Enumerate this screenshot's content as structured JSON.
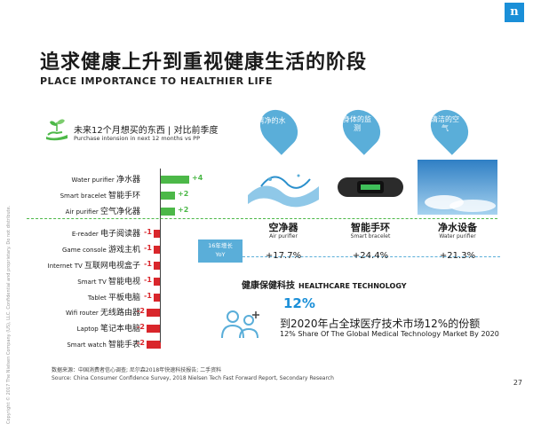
{
  "sidebar_text": "Copyright © 2017 The Nielsen Company (US), LLC. Confidential and proprietary. Do not distribute.",
  "logo_text": "n",
  "title_cn": "追求健康上升到重视健康生活的阶段",
  "title_en": "PLACE IMPORTANCE TO HEALTHIER LIFE",
  "purchase_intention": {
    "title_cn": "未来12个月想买的东西 | 对比前季度",
    "title_en": "Purchase intension in next 12 months vs PP",
    "icon": "plant-in-hand-icon"
  },
  "chart_data": {
    "type": "bar",
    "categories": [
      {
        "en": "Water purifier",
        "cn": "净水器"
      },
      {
        "en": "Smart bracelet",
        "cn": "智能手环"
      },
      {
        "en": "Air purifier",
        "cn": "空气净化器"
      },
      {
        "en": "E-reader",
        "cn": "电子阅读器"
      },
      {
        "en": "Game console",
        "cn": "游戏主机"
      },
      {
        "en": "Internet TV",
        "cn": "互联网电视盒子"
      },
      {
        "en": "Smart TV",
        "cn": "智能电视"
      },
      {
        "en": "Tablet",
        "cn": "平板电脑"
      },
      {
        "en": "Wifi router",
        "cn": "无线路由器"
      },
      {
        "en": "Laptop",
        "cn": "笔记本电脑"
      },
      {
        "en": "Smart watch",
        "cn": "智能手表"
      }
    ],
    "values": [
      4,
      2,
      2,
      -1,
      -1,
      -1,
      -1,
      -1,
      -2,
      -2,
      -2
    ],
    "value_labels": [
      "+4",
      "+2",
      "+2",
      "-1",
      "-1",
      "-1",
      "-1",
      "-1",
      "-2",
      "-2",
      "-2"
    ],
    "positive_color": "#4cb848",
    "negative_color": "#d9262b"
  },
  "yoy_label_cn": "16年增长",
  "yoy_label_en": "YoY",
  "products": [
    {
      "bubble": "清净的水",
      "cn": "空净器",
      "en": "Air purifier",
      "growth": "+17.7%",
      "image": "water-splash-photo"
    },
    {
      "bubble": "身体的监测",
      "cn": "智能手环",
      "en": "Smart bracelet",
      "growth": "+24.4%",
      "image": "smart-bracelet-photo"
    },
    {
      "bubble": "清洁的空气",
      "cn": "净水设备",
      "en": "Water purifier",
      "growth": "+21.3%",
      "image": "sky-photo"
    }
  ],
  "healthcare": {
    "title_cn": "健康保健科技",
    "title_en": "HEALTHCARE TECHNOLOGY",
    "percent": "12%",
    "desc_cn": "到2020年占全球医疗技术市场12%的份额",
    "desc_en": "12% Share Of The Global Medical Technology Market By 2020",
    "icon": "people-plus-icon"
  },
  "source_cn": "数据来源：中国消费者信心调查; 尼尔森2018年快速科技报告; 二手资料",
  "source_en": "Source: China Consumer Confidence Survey, 2018 Nielsen Tech Fast Forward Report, Secondary Research",
  "page_number": "27"
}
